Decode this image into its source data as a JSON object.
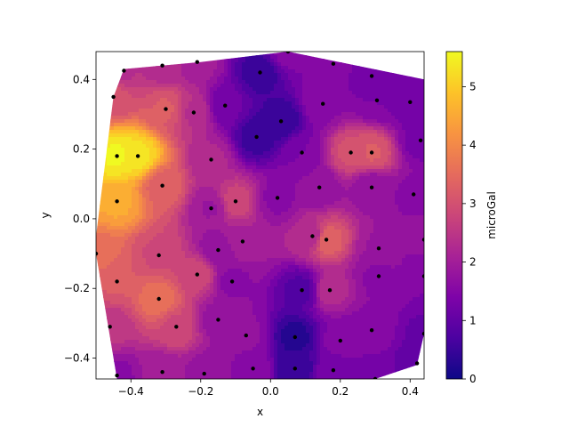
{
  "chart_data": {
    "type": "heatmap",
    "subtype": "filled-contour",
    "title": "",
    "xlabel": "x",
    "ylabel": "y",
    "xlim": [
      -0.5,
      0.44
    ],
    "ylim": [
      -0.46,
      0.48
    ],
    "x_ticks": [
      {
        "value": -0.4,
        "label": "−0.4"
      },
      {
        "value": -0.2,
        "label": "−0.2"
      },
      {
        "value": 0.0,
        "label": "0.0"
      },
      {
        "value": 0.2,
        "label": "0.2"
      },
      {
        "value": 0.4,
        "label": "0.4"
      }
    ],
    "y_ticks": [
      {
        "value": -0.4,
        "label": "−0.4"
      },
      {
        "value": -0.2,
        "label": "−0.2"
      },
      {
        "value": 0.0,
        "label": "0.0"
      },
      {
        "value": 0.2,
        "label": "0.2"
      },
      {
        "value": 0.4,
        "label": "0.4"
      }
    ],
    "colorbar": {
      "label": "microGal",
      "min": 0,
      "max": 5.6,
      "colormap": "plasma",
      "ticks": [
        {
          "value": 0,
          "label": "0"
        },
        {
          "value": 1,
          "label": "1"
        },
        {
          "value": 2,
          "label": "2"
        },
        {
          "value": 3,
          "label": "3"
        },
        {
          "value": 4,
          "label": "4"
        },
        {
          "value": 5,
          "label": "5"
        }
      ]
    },
    "hull": [
      [
        -0.42,
        0.43
      ],
      [
        -0.2,
        0.45
      ],
      [
        0.05,
        0.48
      ],
      [
        0.44,
        0.4
      ],
      [
        0.44,
        -0.33
      ],
      [
        0.42,
        -0.42
      ],
      [
        0.3,
        -0.46
      ],
      [
        -0.44,
        -0.46
      ],
      [
        -0.5,
        -0.1
      ],
      [
        -0.5,
        -0.05
      ],
      [
        -0.45,
        0.35
      ]
    ],
    "points": [
      {
        "x": -0.42,
        "y": 0.425,
        "v": 2.4
      },
      {
        "x": -0.31,
        "y": 0.44,
        "v": 2.3
      },
      {
        "x": -0.21,
        "y": 0.45,
        "v": 2.0
      },
      {
        "x": -0.03,
        "y": 0.42,
        "v": 0.5
      },
      {
        "x": 0.05,
        "y": 0.48,
        "v": 1.5
      },
      {
        "x": 0.18,
        "y": 0.445,
        "v": 1.5
      },
      {
        "x": 0.29,
        "y": 0.41,
        "v": 1.2
      },
      {
        "x": -0.45,
        "y": 0.35,
        "v": 3.0
      },
      {
        "x": -0.3,
        "y": 0.315,
        "v": 3.2
      },
      {
        "x": -0.22,
        "y": 0.305,
        "v": 2.4
      },
      {
        "x": -0.13,
        "y": 0.325,
        "v": 1.2
      },
      {
        "x": 0.03,
        "y": 0.28,
        "v": 0.4
      },
      {
        "x": 0.15,
        "y": 0.33,
        "v": 1.6
      },
      {
        "x": 0.305,
        "y": 0.34,
        "v": 1.4
      },
      {
        "x": 0.4,
        "y": 0.335,
        "v": 1.2
      },
      {
        "x": -0.04,
        "y": 0.235,
        "v": 0.5
      },
      {
        "x": 0.43,
        "y": 0.225,
        "v": 1.3
      },
      {
        "x": -0.44,
        "y": 0.18,
        "v": 5.5
      },
      {
        "x": -0.38,
        "y": 0.18,
        "v": 5.3
      },
      {
        "x": -0.17,
        "y": 0.17,
        "v": 2.2
      },
      {
        "x": 0.09,
        "y": 0.19,
        "v": 1.4
      },
      {
        "x": 0.23,
        "y": 0.19,
        "v": 3.0
      },
      {
        "x": 0.29,
        "y": 0.19,
        "v": 3.2
      },
      {
        "x": -0.31,
        "y": 0.095,
        "v": 3.3
      },
      {
        "x": 0.14,
        "y": 0.09,
        "v": 1.7
      },
      {
        "x": 0.29,
        "y": 0.09,
        "v": 1.7
      },
      {
        "x": 0.41,
        "y": 0.07,
        "v": 1.6
      },
      {
        "x": -0.44,
        "y": 0.05,
        "v": 4.5
      },
      {
        "x": -0.1,
        "y": 0.05,
        "v": 2.8
      },
      {
        "x": -0.17,
        "y": 0.03,
        "v": 1.9
      },
      {
        "x": 0.02,
        "y": 0.06,
        "v": 1.6
      },
      {
        "x": 0.12,
        "y": -0.05,
        "v": 2.2
      },
      {
        "x": 0.16,
        "y": -0.06,
        "v": 3.4
      },
      {
        "x": -0.08,
        "y": -0.065,
        "v": 2.1
      },
      {
        "x": 0.44,
        "y": -0.06,
        "v": 1.7
      },
      {
        "x": 0.31,
        "y": -0.085,
        "v": 1.9
      },
      {
        "x": -0.5,
        "y": -0.1,
        "v": 3.6
      },
      {
        "x": -0.15,
        "y": -0.09,
        "v": 1.7
      },
      {
        "x": -0.32,
        "y": -0.105,
        "v": 2.9
      },
      {
        "x": -0.21,
        "y": -0.16,
        "v": 2.8
      },
      {
        "x": 0.31,
        "y": -0.165,
        "v": 1.6
      },
      {
        "x": 0.44,
        "y": -0.165,
        "v": 1.4
      },
      {
        "x": -0.44,
        "y": -0.18,
        "v": 3.2
      },
      {
        "x": -0.11,
        "y": -0.18,
        "v": 1.6
      },
      {
        "x": 0.09,
        "y": -0.205,
        "v": 0.8
      },
      {
        "x": 0.17,
        "y": -0.205,
        "v": 2.3
      },
      {
        "x": -0.32,
        "y": -0.23,
        "v": 3.6
      },
      {
        "x": -0.15,
        "y": -0.29,
        "v": 1.8
      },
      {
        "x": -0.27,
        "y": -0.31,
        "v": 2.9
      },
      {
        "x": -0.46,
        "y": -0.31,
        "v": 2.5
      },
      {
        "x": 0.29,
        "y": -0.32,
        "v": 1.6
      },
      {
        "x": 0.44,
        "y": -0.33,
        "v": 1.1
      },
      {
        "x": -0.07,
        "y": -0.335,
        "v": 1.7
      },
      {
        "x": 0.07,
        "y": -0.34,
        "v": 0.3
      },
      {
        "x": 0.2,
        "y": -0.35,
        "v": 1.5
      },
      {
        "x": 0.42,
        "y": -0.415,
        "v": 1.0
      },
      {
        "x": -0.05,
        "y": -0.43,
        "v": 1.6
      },
      {
        "x": 0.07,
        "y": -0.43,
        "v": 0.4
      },
      {
        "x": 0.18,
        "y": -0.435,
        "v": 1.3
      },
      {
        "x": -0.31,
        "y": -0.44,
        "v": 2.0
      },
      {
        "x": -0.19,
        "y": -0.445,
        "v": 1.8
      },
      {
        "x": -0.44,
        "y": -0.45,
        "v": 1.6
      },
      {
        "x": 0.3,
        "y": -0.46,
        "v": 1.2
      }
    ]
  }
}
